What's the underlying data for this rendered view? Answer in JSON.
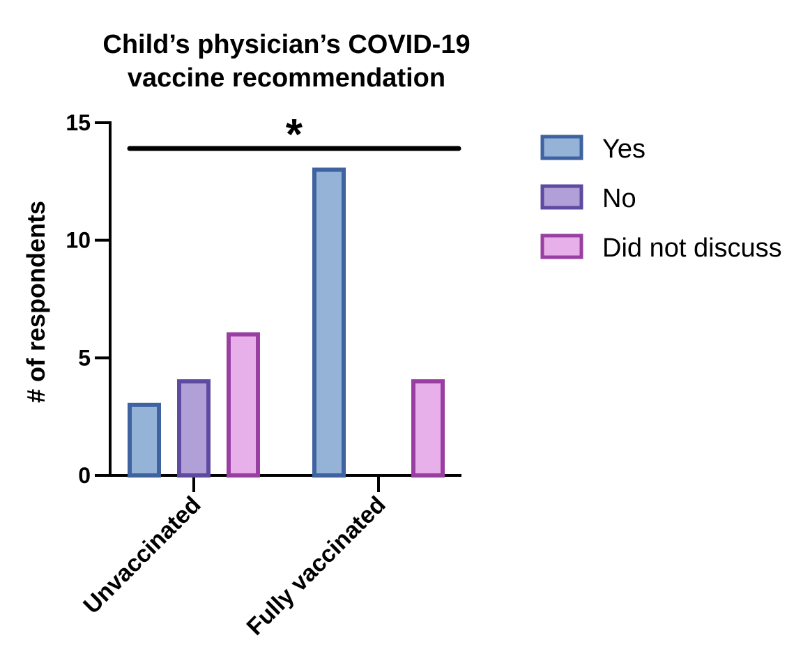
{
  "chart_data": {
    "type": "bar",
    "title_lines": [
      "Child’s physician’s COVID-19",
      "vaccine recommendation"
    ],
    "ylabel": "# of respondents",
    "xlabel": "",
    "categories": [
      "Unvaccinated",
      "Fully vaccinated"
    ],
    "series": [
      {
        "name": "Yes",
        "values": [
          3,
          13
        ],
        "fill": "#95b3d7",
        "stroke": "#3f62a0"
      },
      {
        "name": "No",
        "values": [
          4,
          0
        ],
        "fill": "#b1a0d8",
        "stroke": "#5e4aa0"
      },
      {
        "name": "Did not discuss",
        "values": [
          6,
          4
        ],
        "fill": "#e8b0ea",
        "stroke": "#9a3fa2"
      }
    ],
    "ylim": [
      0,
      15
    ],
    "yticks": [
      0,
      5,
      10,
      15
    ],
    "ytick_labels": [
      "0",
      "5",
      "10",
      "15"
    ],
    "grid": false,
    "legend_position": "right",
    "significance": {
      "symbol": "*",
      "spans": "all"
    }
  }
}
